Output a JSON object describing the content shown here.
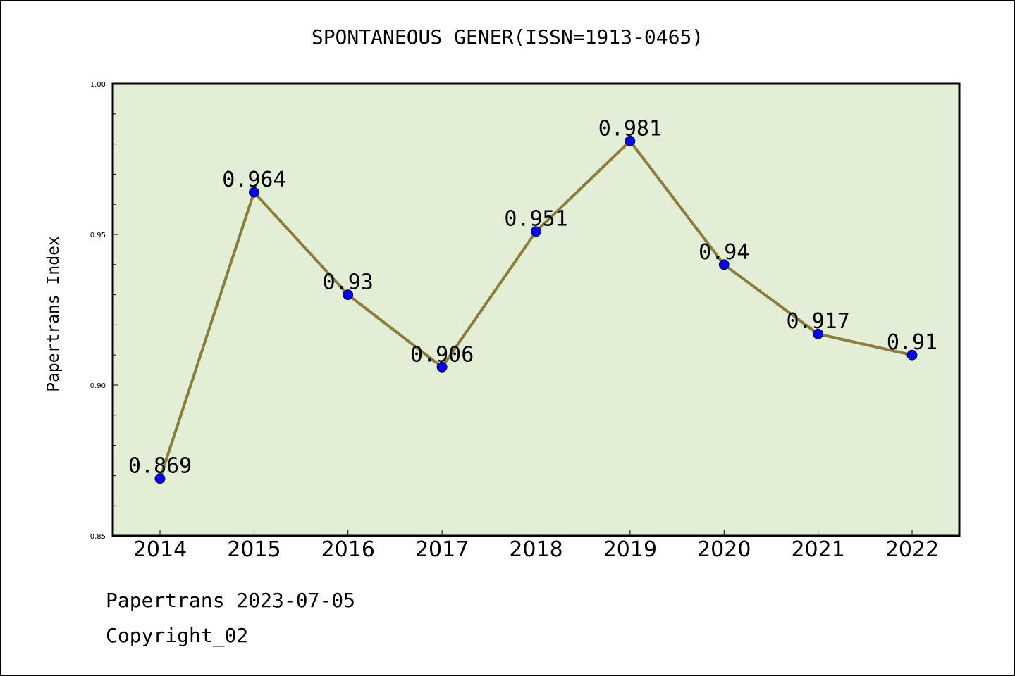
{
  "chart_data": {
    "type": "line",
    "title": "SPONTANEOUS GENER(ISSN=1913-0465)",
    "xlabel": "",
    "ylabel": "Papertrans Index",
    "x": [
      "2014",
      "2015",
      "2016",
      "2017",
      "2018",
      "2019",
      "2020",
      "2021",
      "2022"
    ],
    "series": [
      {
        "values": [
          0.869,
          0.964,
          0.93,
          0.906,
          0.951,
          0.981,
          0.94,
          0.917,
          0.91
        ],
        "data_labels": [
          "0.869",
          "0.964",
          "0.93",
          "0.906",
          "0.951",
          "0.981",
          "0.94",
          "0.917",
          "0.91"
        ],
        "line_color": "#8b7d3a",
        "marker_color": "#0000ee"
      }
    ],
    "ylim": [
      0.85,
      1.0
    ],
    "yticks": [
      "0.85",
      "0.90",
      "0.95",
      "1.00"
    ],
    "grid": false,
    "plot_background": "#e2efd6"
  },
  "footer": {
    "line1": "Papertrans 2023-07-05",
    "line2": "Copyright_02"
  }
}
